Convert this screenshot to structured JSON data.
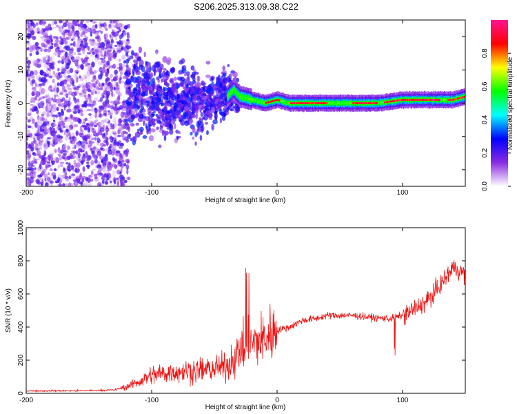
{
  "page": {
    "title": "S206.2025.313.09.38.C22"
  },
  "chart_data": [
    {
      "type": "heatmap",
      "xlabel": "Height of straight line (km)",
      "ylabel": "Frequency (Hz)",
      "xlim": [
        -200,
        150
      ],
      "ylim": [
        -25,
        25
      ],
      "x_ticks": [
        -200,
        -100,
        0,
        100
      ],
      "y_ticks": [
        -20,
        -10,
        0,
        10,
        20
      ],
      "colorbar": {
        "label": "Normalized spectral amplitude",
        "range": [
          0,
          1
        ],
        "ticks": [
          "0.0",
          "0.2",
          "0.4",
          "0.6",
          "0.8"
        ],
        "colormap": [
          "#ffffff",
          "#8a2be2",
          "#0000ff",
          "#00ffff",
          "#00ff00",
          "#ffff00",
          "#ff0000",
          "#ff1493"
        ]
      },
      "ridge": {
        "x": [
          -120,
          -100,
          -80,
          -60,
          -40,
          -35,
          -30,
          -20,
          -10,
          0,
          10,
          20,
          40,
          60,
          80,
          100,
          120,
          140,
          150
        ],
        "frequency": [
          2,
          2,
          1,
          1,
          2,
          4,
          2,
          1,
          0,
          1,
          0,
          0,
          0,
          0,
          0,
          1,
          1,
          1,
          2
        ]
      }
    },
    {
      "type": "line",
      "xlabel": "Height of straight line (km)",
      "ylabel": "SNR (10 * v/v)",
      "xlim": [
        -200,
        150
      ],
      "ylim": [
        0,
        1000
      ],
      "x_ticks": [
        -200,
        -100,
        0,
        100
      ],
      "y_ticks": [
        0,
        200,
        400,
        600,
        800,
        1000
      ],
      "color": "#ee1111",
      "trend": {
        "x": [
          -200,
          -160,
          -130,
          -120,
          -110,
          -100,
          -80,
          -60,
          -40,
          -30,
          -20,
          -10,
          0,
          10,
          20,
          30,
          40,
          60,
          80,
          90,
          100,
          110,
          120,
          130,
          140,
          150
        ],
        "y": [
          15,
          15,
          20,
          40,
          70,
          110,
          130,
          140,
          160,
          250,
          300,
          330,
          380,
          400,
          440,
          450,
          470,
          470,
          455,
          450,
          470,
          510,
          560,
          650,
          760,
          720
        ]
      }
    }
  ]
}
